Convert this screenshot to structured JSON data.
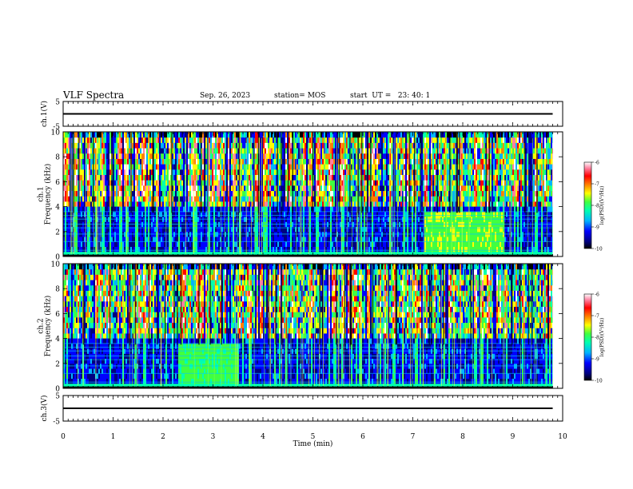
{
  "header": {
    "title": "VLF Spectra",
    "date": "Sep. 26, 2023",
    "station": "station= MOS",
    "start": "start  UT =   23: 40: 1"
  },
  "chart_data": [
    {
      "type": "line",
      "name": "ch1-waveform",
      "ylabel": "ch.1(V)",
      "ylim": [
        -5,
        5
      ],
      "yticks": [
        "5",
        "-5"
      ],
      "x": [
        0,
        9.8
      ],
      "y": [
        0,
        0
      ],
      "xlim": [
        0,
        10
      ]
    },
    {
      "type": "heatmap",
      "name": "ch1-spectrogram",
      "ylabel": "ch.1\nFrequency (kHz)",
      "ylim": [
        0,
        10
      ],
      "yticks": [
        "0",
        "2",
        "4",
        "6",
        "8",
        "10"
      ],
      "xlim": [
        0,
        10
      ],
      "x_data_end": 9.8,
      "colorbar": {
        "label": "log(PSD)(V²/Hz)",
        "ticks": [
          "-6",
          "-7",
          "-8",
          "-9",
          "-10"
        ],
        "range": [
          -10,
          -6
        ]
      },
      "features": {
        "sferic_band_khz": [
          4,
          10
        ],
        "noise_band_khz": [
          0,
          4
        ],
        "enhanced_segment_min": [
          7.2,
          8.8
        ]
      }
    },
    {
      "type": "heatmap",
      "name": "ch2-spectrogram",
      "ylabel": "ch.2\nFrequency (kHz)",
      "ylim": [
        0,
        10
      ],
      "yticks": [
        "0",
        "2",
        "4",
        "6",
        "8",
        "10"
      ],
      "xlim": [
        0,
        10
      ],
      "x_data_end": 9.8,
      "colorbar": {
        "label": "log(PSD)(V²/Hz)",
        "ticks": [
          "-6",
          "-7",
          "-8",
          "-9",
          "-10"
        ],
        "range": [
          -10,
          -6
        ]
      },
      "features": {
        "sferic_band_khz": [
          4,
          10
        ],
        "noise_band_khz": [
          0,
          4
        ],
        "enhanced_segment_min": [
          2.3,
          3.5
        ]
      }
    },
    {
      "type": "line",
      "name": "ch3-waveform",
      "ylabel": "ch.3(V)",
      "ylim": [
        -5,
        5
      ],
      "yticks": [
        "5",
        "-5"
      ],
      "x": [
        0,
        9.8
      ],
      "y": [
        0,
        0
      ],
      "xlim": [
        0,
        10
      ]
    }
  ],
  "xaxis": {
    "label": "Time (min)",
    "ticks": [
      "0",
      "1",
      "2",
      "3",
      "4",
      "5",
      "6",
      "7",
      "8",
      "9",
      "10"
    ]
  },
  "colors": {
    "colormap": [
      "#000000",
      "#000080",
      "#0000ff",
      "#00b4ff",
      "#00ffb0",
      "#40ff40",
      "#ffff00",
      "#ff8000",
      "#ff0000",
      "#ff80a0",
      "#ffffff"
    ]
  }
}
